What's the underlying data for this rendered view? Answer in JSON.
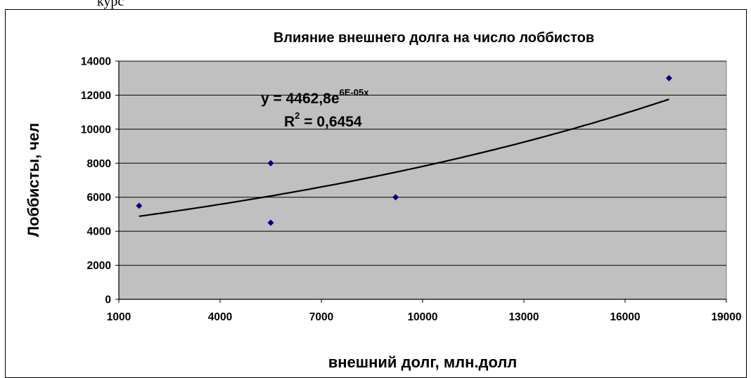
{
  "page": {
    "top_text": "курс"
  },
  "chart_data": {
    "type": "scatter",
    "title": "Влияние  внешнего долга на число лоббистов",
    "xlabel": "внешний долг, млн.долл",
    "ylabel": "Лоббисты, чел",
    "xlim": [
      1000,
      19000
    ],
    "ylim": [
      0,
      14000
    ],
    "xticks": [
      1000,
      4000,
      7000,
      10000,
      13000,
      16000,
      19000
    ],
    "yticks": [
      0,
      2000,
      4000,
      6000,
      8000,
      10000,
      12000,
      14000
    ],
    "grid": {
      "horizontal": true,
      "vertical": false
    },
    "plot_background": "#c0c0c0",
    "marker_color": "#000080",
    "marker": "diamond",
    "points": [
      {
        "x": 1600,
        "y": 5500
      },
      {
        "x": 5500,
        "y": 8000
      },
      {
        "x": 5500,
        "y": 4500
      },
      {
        "x": 9200,
        "y": 6000
      },
      {
        "x": 17300,
        "y": 13000
      }
    ],
    "trendline": {
      "type": "exponential",
      "a": 4462.8,
      "b": 5.6e-05,
      "x_range": [
        1600,
        17300
      ],
      "color": "#000000",
      "equation_main": "y = 4462,8e",
      "equation_exponent": "6E-05x",
      "r2_prefix": "R",
      "r2_power": "2",
      "r2_suffix": " = 0,6454"
    }
  }
}
